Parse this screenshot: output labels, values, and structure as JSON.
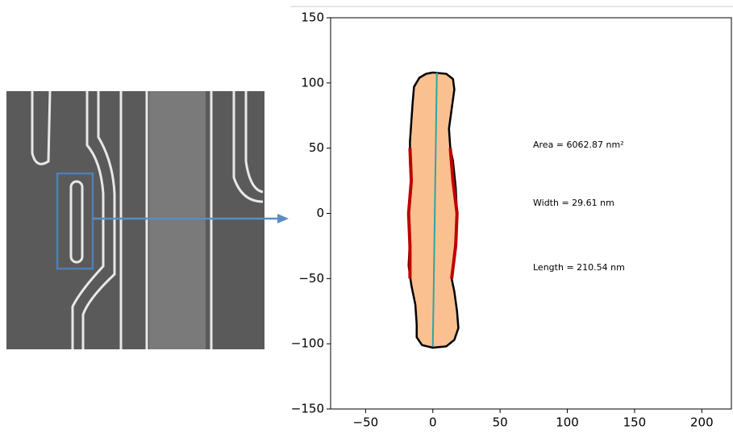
{
  "chart_data": {
    "type": "line",
    "xlim": [
      -76,
      222
    ],
    "ylim": [
      -150,
      150
    ],
    "xticks": [
      {
        "value": -50,
        "label": "−50"
      },
      0,
      50,
      100,
      150,
      200
    ],
    "yticks": [
      {
        "value": -150,
        "label": "−150"
      },
      {
        "value": -100,
        "label": "−100"
      },
      {
        "value": -50,
        "label": "−50"
      },
      0,
      50,
      100,
      150
    ],
    "series": [
      {
        "color": "#000000",
        "fill": "#fac08f",
        "x": [
          0,
          10,
          15,
          16,
          14,
          12,
          13,
          15,
          17,
          18,
          17,
          15,
          14,
          16,
          18,
          19,
          16,
          10,
          0,
          -8,
          -12,
          -12,
          -13,
          -16,
          -18,
          -17,
          -18,
          -16,
          -17,
          -17,
          -16,
          -15,
          -14,
          -10,
          -5,
          0
        ],
        "y": [
          108,
          107,
          103,
          95,
          80,
          65,
          50,
          40,
          20,
          0,
          -20,
          -40,
          -50,
          -60,
          -75,
          -88,
          -97,
          -102,
          -103,
          -101,
          -95,
          -85,
          -70,
          -55,
          -40,
          -20,
          0,
          20,
          40,
          55,
          70,
          85,
          97,
          104,
          107,
          108
        ]
      },
      {
        "color": "#c00000",
        "x": [
          -17,
          -16,
          -18,
          -17,
          -17
        ],
        "y": [
          50,
          25,
          0,
          -25,
          -50
        ]
      },
      {
        "color": "#c00000",
        "x": [
          13,
          15,
          18,
          17,
          14
        ],
        "y": [
          50,
          25,
          0,
          -25,
          -50
        ]
      },
      {
        "color": "#2ca6a4",
        "x": [
          0,
          3
        ],
        "y": [
          -102,
          108
        ]
      }
    ],
    "annotations": [
      "Area = 6062.87 nm²",
      "Width = 29.61 nm",
      "Length = 210.54 nm"
    ]
  }
}
